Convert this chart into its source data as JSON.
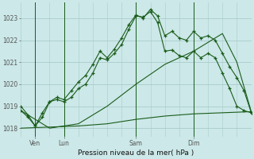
{
  "background_color": "#cce8e8",
  "grid_color": "#aacccc",
  "line_color": "#1a5c1a",
  "title": "Pression niveau de la mer( hPa )",
  "ylabel_ticks": [
    1018,
    1019,
    1020,
    1021,
    1022,
    1023
  ],
  "xlim": [
    0,
    96
  ],
  "ylim": [
    1017.6,
    1023.7
  ],
  "x_tick_positions": [
    6,
    18,
    48,
    72
  ],
  "x_tick_labels": [
    "Ven",
    "Lun",
    "Sam",
    "Dim"
  ],
  "vline_positions": [
    6,
    18,
    48,
    72
  ],
  "series1_marked": {
    "x": [
      0,
      3,
      6,
      9,
      12,
      15,
      18,
      21,
      24,
      27,
      30,
      33,
      36,
      39,
      42,
      45,
      48,
      51,
      54,
      57,
      60,
      63,
      66,
      69,
      72,
      75,
      78,
      81,
      84,
      87,
      90,
      93,
      96
    ],
    "y": [
      1018.8,
      1018.5,
      1018.1,
      1018.5,
      1019.2,
      1019.3,
      1019.2,
      1019.4,
      1019.8,
      1020.0,
      1020.5,
      1021.2,
      1021.1,
      1021.4,
      1021.8,
      1022.5,
      1023.1,
      1023.05,
      1023.3,
      1022.8,
      1021.5,
      1021.55,
      1021.3,
      1021.2,
      1021.5,
      1021.2,
      1021.4,
      1021.2,
      1020.5,
      1019.8,
      1019.0,
      1018.8,
      1018.7
    ]
  },
  "series2_marked": {
    "x": [
      0,
      3,
      6,
      9,
      12,
      15,
      18,
      21,
      24,
      27,
      30,
      33,
      36,
      39,
      42,
      45,
      48,
      51,
      54,
      57,
      60,
      63,
      66,
      69,
      72,
      75,
      78,
      81,
      84,
      87,
      90,
      93,
      96
    ],
    "y": [
      1019.0,
      1018.6,
      1018.1,
      1018.7,
      1019.2,
      1019.4,
      1019.3,
      1019.7,
      1020.1,
      1020.4,
      1020.9,
      1021.5,
      1021.2,
      1021.6,
      1022.1,
      1022.7,
      1023.15,
      1023.0,
      1023.4,
      1023.1,
      1022.2,
      1022.4,
      1022.1,
      1022.0,
      1022.4,
      1022.1,
      1022.2,
      1022.0,
      1021.4,
      1020.8,
      1020.3,
      1019.7,
      1018.7
    ]
  },
  "series3_flat": {
    "x": [
      0,
      12,
      24,
      36,
      48,
      60,
      72,
      84,
      96
    ],
    "y": [
      1018.0,
      1018.05,
      1018.1,
      1018.2,
      1018.4,
      1018.55,
      1018.65,
      1018.7,
      1018.75
    ]
  },
  "series4_diagonal": {
    "x": [
      0,
      12,
      24,
      36,
      48,
      60,
      72,
      84,
      90,
      96
    ],
    "y": [
      1018.8,
      1018.0,
      1018.2,
      1019.0,
      1020.0,
      1020.9,
      1021.5,
      1022.3,
      1021.0,
      1018.75
    ]
  }
}
